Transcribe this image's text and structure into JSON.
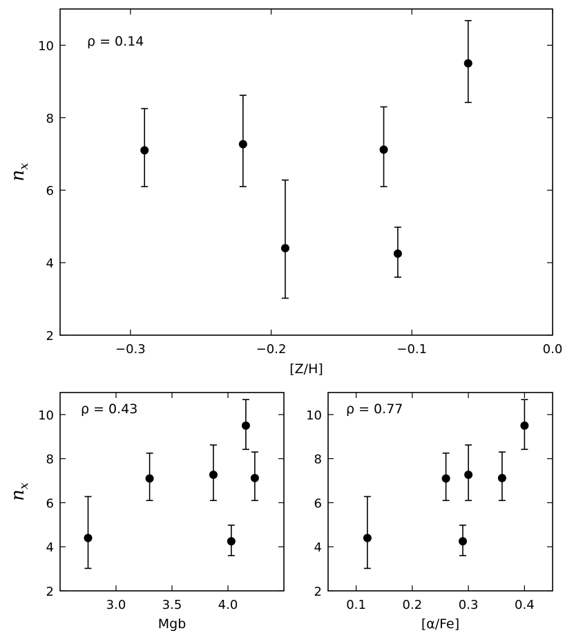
{
  "chart_data": [
    {
      "type": "scatter",
      "panel": "top",
      "title": "",
      "xlabel": "[Z/H]",
      "ylabel_base": "n",
      "ylabel_sub": "x",
      "annotation": "ρ = 0.14",
      "xlim": [
        -0.35,
        0.0
      ],
      "ylim": [
        2,
        11
      ],
      "xticks": [
        -0.3,
        -0.2,
        -0.1,
        0.0
      ],
      "xtick_labels": [
        "−0.3",
        "−0.2",
        "−0.1",
        "0.0"
      ],
      "yticks": [
        2,
        4,
        6,
        8,
        10
      ],
      "ytick_labels": [
        "2",
        "4",
        "6",
        "8",
        "10"
      ],
      "grid": false,
      "points": [
        {
          "x": -0.29,
          "y": 7.1,
          "ylo": 6.1,
          "yhi": 8.25
        },
        {
          "x": -0.22,
          "y": 7.27,
          "ylo": 6.1,
          "yhi": 8.62
        },
        {
          "x": -0.19,
          "y": 4.4,
          "ylo": 3.02,
          "yhi": 6.28
        },
        {
          "x": -0.12,
          "y": 7.12,
          "ylo": 6.1,
          "yhi": 8.3
        },
        {
          "x": -0.11,
          "y": 4.25,
          "ylo": 3.6,
          "yhi": 4.98
        },
        {
          "x": -0.06,
          "y": 9.5,
          "ylo": 8.42,
          "yhi": 10.68
        }
      ]
    },
    {
      "type": "scatter",
      "panel": "bottom-left",
      "title": "",
      "xlabel": "Mgb",
      "ylabel_base": "n",
      "ylabel_sub": "x",
      "annotation": "ρ = 0.43",
      "xlim": [
        2.5,
        4.5
      ],
      "ylim": [
        2,
        11
      ],
      "xticks": [
        3.0,
        3.5,
        4.0
      ],
      "xtick_labels": [
        "3.0",
        "3.5",
        "4.0"
      ],
      "yticks": [
        2,
        4,
        6,
        8,
        10
      ],
      "ytick_labels": [
        "2",
        "4",
        "6",
        "8",
        "10"
      ],
      "grid": false,
      "points": [
        {
          "x": 2.75,
          "y": 4.4,
          "ylo": 3.02,
          "yhi": 6.28
        },
        {
          "x": 3.3,
          "y": 7.1,
          "ylo": 6.1,
          "yhi": 8.25
        },
        {
          "x": 3.87,
          "y": 7.27,
          "ylo": 6.1,
          "yhi": 8.62
        },
        {
          "x": 4.03,
          "y": 4.25,
          "ylo": 3.6,
          "yhi": 4.98
        },
        {
          "x": 4.16,
          "y": 9.5,
          "ylo": 8.42,
          "yhi": 10.68
        },
        {
          "x": 4.24,
          "y": 7.12,
          "ylo": 6.1,
          "yhi": 8.3
        }
      ]
    },
    {
      "type": "scatter",
      "panel": "bottom-right",
      "title": "",
      "xlabel": "[α/Fe]",
      "ylabel_base": "",
      "ylabel_sub": "",
      "annotation": "ρ = 0.77",
      "xlim": [
        0.05,
        0.45
      ],
      "ylim": [
        2,
        11
      ],
      "xticks": [
        0.1,
        0.2,
        0.3,
        0.4
      ],
      "xtick_labels": [
        "0.1",
        "0.2",
        "0.3",
        "0.4"
      ],
      "yticks": [
        2,
        4,
        6,
        8,
        10
      ],
      "ytick_labels": [
        "2",
        "4",
        "6",
        "8",
        "10"
      ],
      "grid": false,
      "points": [
        {
          "x": 0.12,
          "y": 4.4,
          "ylo": 3.02,
          "yhi": 6.28
        },
        {
          "x": 0.26,
          "y": 7.1,
          "ylo": 6.1,
          "yhi": 8.25
        },
        {
          "x": 0.29,
          "y": 4.25,
          "ylo": 3.6,
          "yhi": 4.98
        },
        {
          "x": 0.3,
          "y": 7.27,
          "ylo": 6.1,
          "yhi": 8.62
        },
        {
          "x": 0.36,
          "y": 7.12,
          "ylo": 6.1,
          "yhi": 8.3
        },
        {
          "x": 0.4,
          "y": 9.5,
          "ylo": 8.42,
          "yhi": 10.68
        }
      ]
    }
  ]
}
